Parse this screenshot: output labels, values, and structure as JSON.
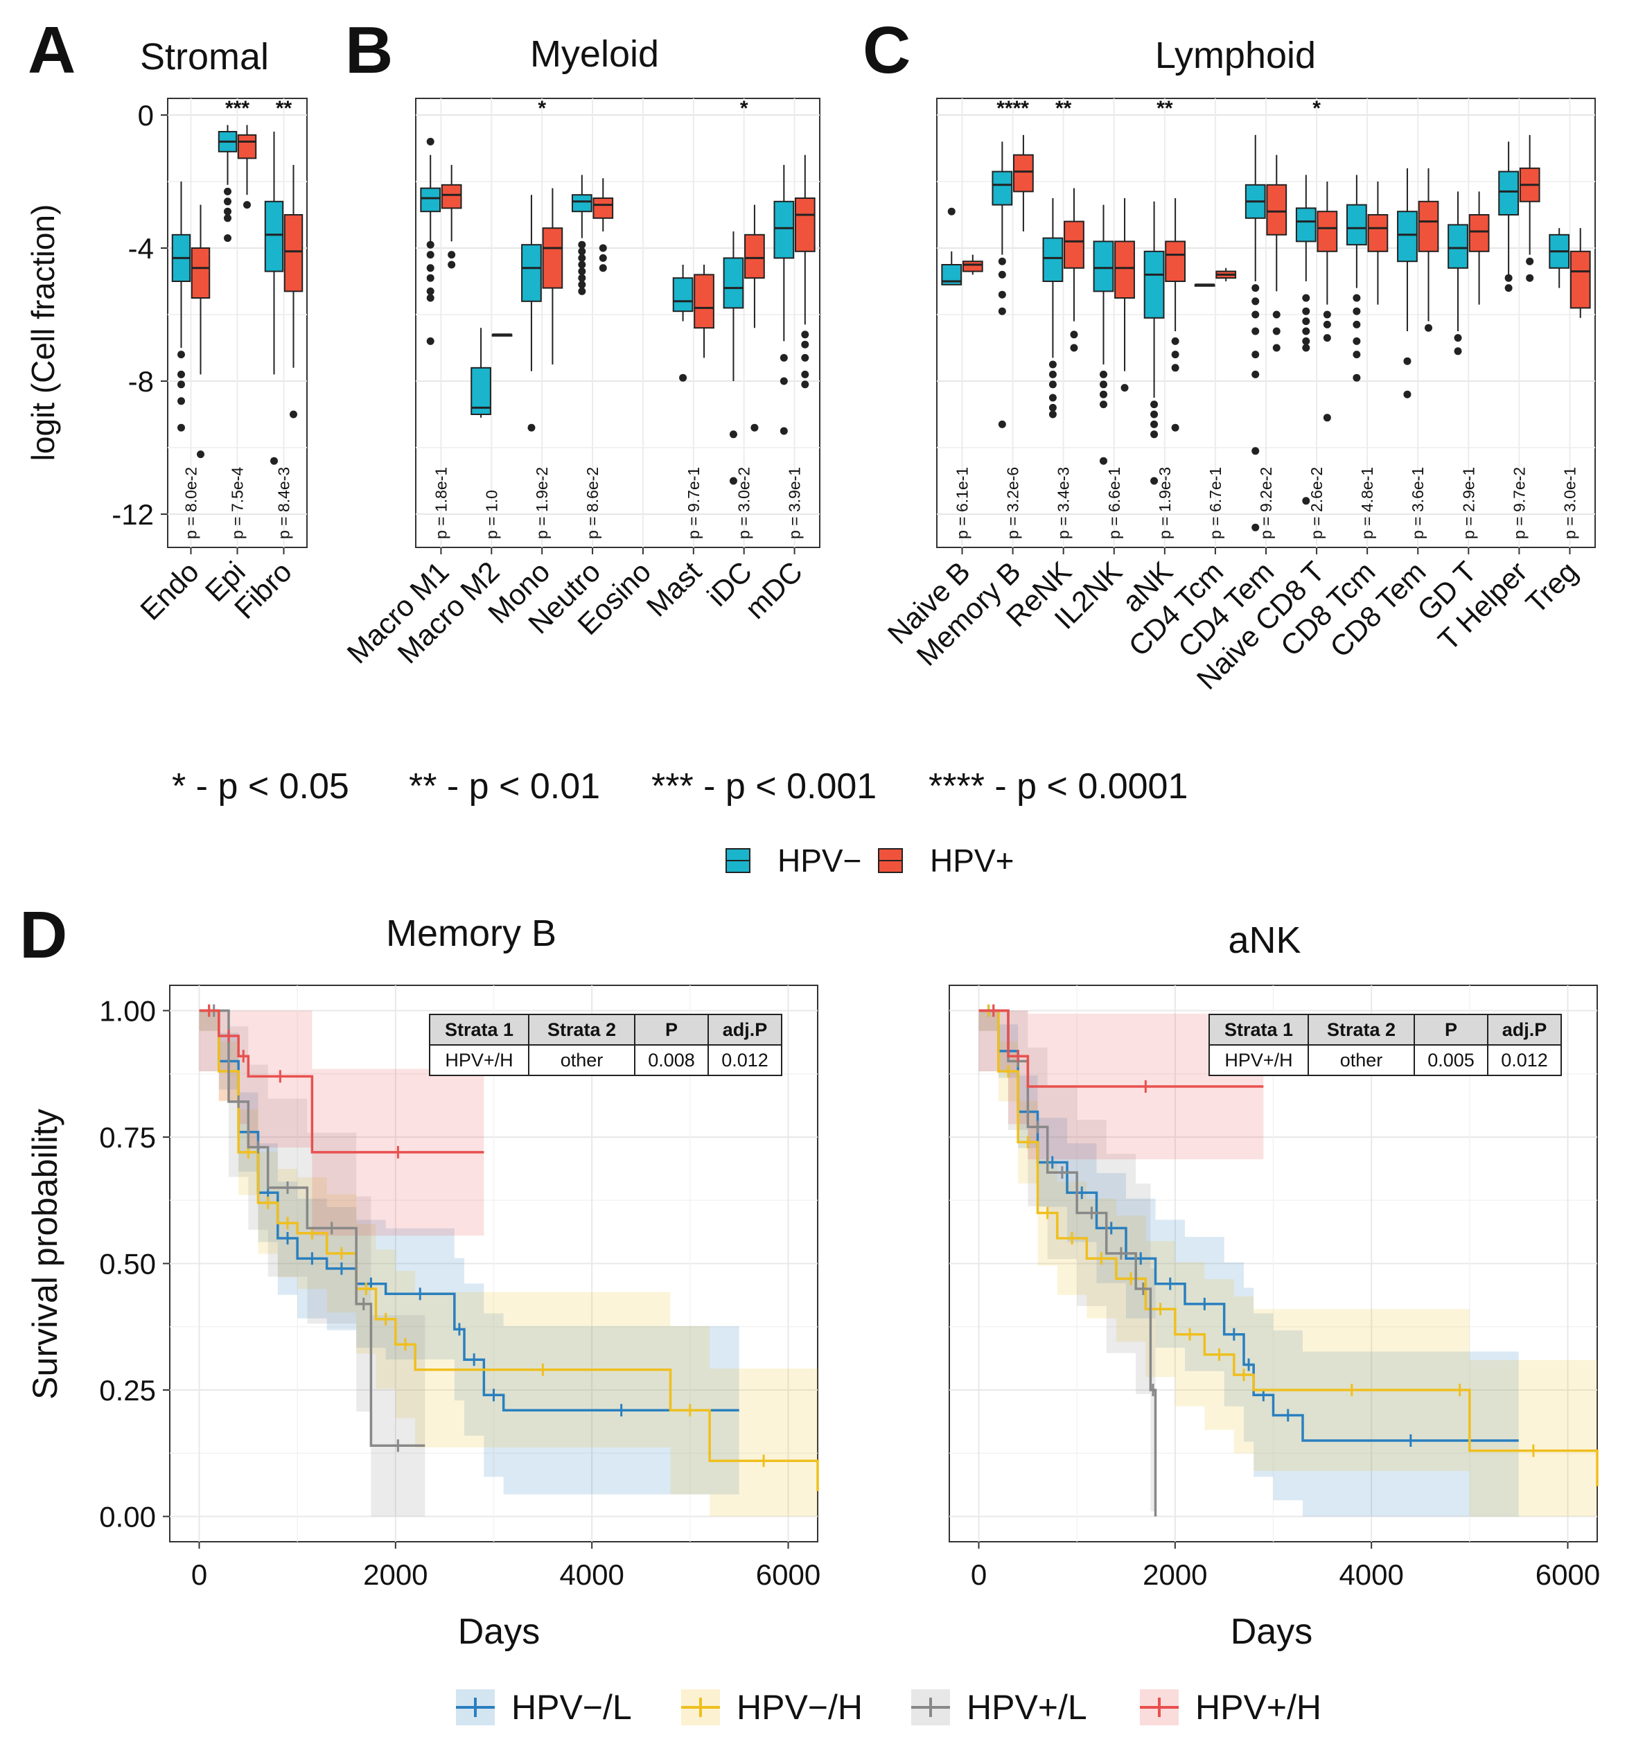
{
  "chart_data": [
    {
      "panel": "A",
      "type": "box",
      "title": "Stromal",
      "ylabel": "logit (Cell fraction)",
      "ylim": [
        -13,
        0.5
      ],
      "yticks": [
        0,
        -4,
        -8,
        -12
      ],
      "categories": [
        "Endo",
        "Epi",
        "Fibro"
      ],
      "stars": [
        "",
        "***",
        "**"
      ],
      "pvalues": [
        "p = 8.0e-2",
        "p = 7.5e-4",
        "p = 8.4e-3"
      ],
      "boxes": [
        {
          "cat": 0,
          "group": "HPV-",
          "min": -7.0,
          "q1": -5.0,
          "med": -4.3,
          "q3": -3.6,
          "max": -2.0,
          "outliers": [
            -7.2,
            -7.8,
            -8.1,
            -8.6,
            -9.4
          ]
        },
        {
          "cat": 0,
          "group": "HPV+",
          "min": -7.8,
          "q1": -5.5,
          "med": -4.6,
          "q3": -4.0,
          "max": -2.7,
          "outliers": [
            -10.2
          ]
        },
        {
          "cat": 1,
          "group": "HPV-",
          "min": -2.1,
          "q1": -1.1,
          "med": -0.8,
          "q3": -0.5,
          "max": -0.3,
          "outliers": [
            -2.3,
            -2.6,
            -2.9,
            -3.1,
            -3.7
          ]
        },
        {
          "cat": 1,
          "group": "HPV+",
          "min": -2.4,
          "q1": -1.3,
          "med": -0.8,
          "q3": -0.6,
          "max": -0.3,
          "outliers": [
            -2.7
          ]
        },
        {
          "cat": 2,
          "group": "HPV-",
          "min": -7.8,
          "q1": -4.7,
          "med": -3.6,
          "q3": -2.6,
          "max": -0.5,
          "outliers": [
            -10.4
          ]
        },
        {
          "cat": 2,
          "group": "HPV+",
          "min": -7.6,
          "q1": -5.3,
          "med": -4.1,
          "q3": -3.0,
          "max": -1.5,
          "outliers": [
            -9.0
          ]
        }
      ]
    },
    {
      "panel": "B",
      "type": "box",
      "title": "Myeloid",
      "ylim": [
        -13,
        0.5
      ],
      "categories": [
        "Macro M1",
        "Macro M2",
        "Mono",
        "Neutro",
        "Eosino",
        "Mast",
        "iDC",
        "mDC"
      ],
      "stars": [
        "",
        "",
        "*",
        "",
        "",
        "",
        "*",
        ""
      ],
      "pvalues": [
        "p = 1.8e-1",
        "p = 1.0",
        "p = 1.9e-2",
        "p = 8.6e-2",
        "",
        "p = 9.7e-1",
        "p = 3.0e-2",
        "p = 3.9e-1"
      ],
      "boxes": [
        {
          "cat": 0,
          "group": "HPV-",
          "min": -3.8,
          "q1": -2.9,
          "med": -2.5,
          "q3": -2.2,
          "max": -1.2,
          "outliers": [
            -0.8,
            -3.9,
            -4.2,
            -4.6,
            -4.9,
            -5.3,
            -5.5,
            -6.8
          ]
        },
        {
          "cat": 0,
          "group": "HPV+",
          "min": -3.8,
          "q1": -2.8,
          "med": -2.4,
          "q3": -2.1,
          "max": -1.5,
          "outliers": [
            -4.2,
            -4.5
          ]
        },
        {
          "cat": 1,
          "group": "HPV-",
          "min": -9.1,
          "q1": -9.0,
          "med": -8.8,
          "q3": -7.6,
          "max": -6.4,
          "outliers": []
        },
        {
          "cat": 1,
          "group": "HPV+",
          "min": -6.6,
          "q1": -6.6,
          "med": -6.6,
          "q3": -6.6,
          "max": -6.6,
          "outliers": []
        },
        {
          "cat": 2,
          "group": "HPV-",
          "min": -7.7,
          "q1": -5.6,
          "med": -4.6,
          "q3": -3.9,
          "max": -2.4,
          "outliers": [
            -9.4
          ]
        },
        {
          "cat": 2,
          "group": "HPV+",
          "min": -7.5,
          "q1": -5.2,
          "med": -4.0,
          "q3": -3.4,
          "max": -2.2,
          "outliers": []
        },
        {
          "cat": 3,
          "group": "HPV-",
          "min": -3.7,
          "q1": -2.9,
          "med": -2.6,
          "q3": -2.4,
          "max": -1.8,
          "outliers": [
            -3.9,
            -4.1,
            -4.3,
            -4.5,
            -4.7,
            -4.9,
            -5.1,
            -5.3
          ]
        },
        {
          "cat": 3,
          "group": "HPV+",
          "min": -3.5,
          "q1": -3.1,
          "med": -2.7,
          "q3": -2.5,
          "max": -1.9,
          "outliers": [
            -4.0,
            -4.3,
            -4.6
          ]
        },
        {
          "cat": 5,
          "group": "HPV-",
          "min": -6.2,
          "q1": -5.9,
          "med": -5.6,
          "q3": -4.9,
          "max": -4.5,
          "outliers": [
            -7.9
          ]
        },
        {
          "cat": 5,
          "group": "HPV+",
          "min": -7.3,
          "q1": -6.4,
          "med": -5.8,
          "q3": -4.8,
          "max": -4.5,
          "outliers": []
        },
        {
          "cat": 6,
          "group": "HPV-",
          "min": -8.0,
          "q1": -5.8,
          "med": -5.2,
          "q3": -4.3,
          "max": -3.5,
          "outliers": [
            -9.6,
            -11.0
          ]
        },
        {
          "cat": 6,
          "group": "HPV+",
          "min": -6.4,
          "q1": -4.9,
          "med": -4.3,
          "q3": -3.6,
          "max": -2.7,
          "outliers": [
            -9.4
          ]
        },
        {
          "cat": 7,
          "group": "HPV-",
          "min": -6.8,
          "q1": -4.3,
          "med": -3.4,
          "q3": -2.6,
          "max": -1.5,
          "outliers": [
            -7.3,
            -8.0,
            -9.5
          ]
        },
        {
          "cat": 7,
          "group": "HPV+",
          "min": -6.3,
          "q1": -4.1,
          "med": -3.0,
          "q3": -2.5,
          "max": -1.2,
          "outliers": [
            -6.6,
            -6.9,
            -7.3,
            -7.8,
            -8.1
          ]
        }
      ]
    },
    {
      "panel": "C",
      "type": "box",
      "title": "Lymphoid",
      "ylim": [
        -13,
        0.5
      ],
      "categories": [
        "Naive B",
        "Memory B",
        "ReNK",
        "IL2NK",
        "aNK",
        "CD4 Tcm",
        "CD4 Tem",
        "Naive CD8 T",
        "CD8 Tcm",
        "CD8 Tem",
        "GD T",
        "T Helper",
        "Treg"
      ],
      "stars": [
        "",
        "****",
        "**",
        "",
        "**",
        "",
        "",
        "*",
        "",
        "",
        "",
        "",
        ""
      ],
      "pvalues": [
        "p = 6.1e-1",
        "p = 3.2e-6",
        "p = 3.4e-3",
        "p = 6.6e-1",
        "p = 1.9e-3",
        "p = 6.7e-1",
        "p = 9.2e-2",
        "p = 2.6e-2",
        "p = 4.8e-1",
        "p = 3.6e-1",
        "p = 2.9e-1",
        "p = 9.7e-2",
        "p = 3.0e-1"
      ],
      "boxes": [
        {
          "cat": 0,
          "group": "HPV-",
          "min": -5.1,
          "q1": -5.1,
          "med": -5.0,
          "q3": -4.5,
          "max": -4.1,
          "outliers": [
            -2.9
          ]
        },
        {
          "cat": 0,
          "group": "HPV+",
          "min": -4.8,
          "q1": -4.7,
          "med": -4.5,
          "q3": -4.4,
          "max": -4.2,
          "outliers": []
        },
        {
          "cat": 1,
          "group": "HPV-",
          "min": -4.2,
          "q1": -2.7,
          "med": -2.1,
          "q3": -1.7,
          "max": -0.8,
          "outliers": [
            -4.4,
            -4.8,
            -5.4,
            -5.9,
            -9.3
          ]
        },
        {
          "cat": 1,
          "group": "HPV+",
          "min": -3.5,
          "q1": -2.3,
          "med": -1.7,
          "q3": -1.2,
          "max": -0.6,
          "outliers": []
        },
        {
          "cat": 2,
          "group": "HPV-",
          "min": -7.3,
          "q1": -5.0,
          "med": -4.3,
          "q3": -3.7,
          "max": -2.5,
          "outliers": [
            -7.5,
            -7.8,
            -8.1,
            -8.5,
            -8.8,
            -9.0
          ]
        },
        {
          "cat": 2,
          "group": "HPV+",
          "min": -6.2,
          "q1": -4.6,
          "med": -3.8,
          "q3": -3.2,
          "max": -2.2,
          "outliers": [
            -6.6,
            -7.0
          ]
        },
        {
          "cat": 3,
          "group": "HPV-",
          "min": -7.5,
          "q1": -5.3,
          "med": -4.6,
          "q3": -3.8,
          "max": -2.7,
          "outliers": [
            -7.8,
            -8.1,
            -8.4,
            -8.7,
            -10.4
          ]
        },
        {
          "cat": 3,
          "group": "HPV+",
          "min": -7.7,
          "q1": -5.5,
          "med": -4.6,
          "q3": -3.8,
          "max": -2.5,
          "outliers": [
            -8.2
          ]
        },
        {
          "cat": 4,
          "group": "HPV-",
          "min": -8.5,
          "q1": -6.1,
          "med": -4.8,
          "q3": -4.1,
          "max": -2.6,
          "outliers": [
            -8.7,
            -9.0,
            -9.3,
            -9.6,
            -11.0
          ]
        },
        {
          "cat": 4,
          "group": "HPV+",
          "min": -6.5,
          "q1": -5.0,
          "med": -4.2,
          "q3": -3.8,
          "max": -2.5,
          "outliers": [
            -6.8,
            -7.2,
            -7.6,
            -9.4
          ]
        },
        {
          "cat": 5,
          "group": "HPV-",
          "min": -5.1,
          "q1": -5.1,
          "med": -5.1,
          "q3": -5.1,
          "max": -5.1,
          "outliers": []
        },
        {
          "cat": 5,
          "group": "HPV+",
          "min": -5.0,
          "q1": -4.9,
          "med": -4.8,
          "q3": -4.7,
          "max": -4.6,
          "outliers": []
        },
        {
          "cat": 6,
          "group": "HPV-",
          "min": -5.0,
          "q1": -3.1,
          "med": -2.6,
          "q3": -2.1,
          "max": -0.6,
          "outliers": [
            -5.2,
            -5.6,
            -6.0,
            -6.5,
            -7.2,
            -7.8,
            -10.1,
            -12.4
          ]
        },
        {
          "cat": 6,
          "group": "HPV+",
          "min": -5.3,
          "q1": -3.6,
          "med": -2.9,
          "q3": -2.1,
          "max": -1.2,
          "outliers": [
            -6.0,
            -6.5,
            -7.0
          ]
        },
        {
          "cat": 7,
          "group": "HPV-",
          "min": -5.0,
          "q1": -3.8,
          "med": -3.2,
          "q3": -2.8,
          "max": -1.8,
          "outliers": [
            -5.5,
            -5.9,
            -6.2,
            -6.5,
            -6.8,
            -7.0,
            -11.6
          ]
        },
        {
          "cat": 7,
          "group": "HPV+",
          "min": -5.7,
          "q1": -4.1,
          "med": -3.4,
          "q3": -2.9,
          "max": -2.0,
          "outliers": [
            -6.0,
            -6.3,
            -6.7,
            -9.1
          ]
        },
        {
          "cat": 8,
          "group": "HPV-",
          "min": -5.2,
          "q1": -3.9,
          "med": -3.4,
          "q3": -2.7,
          "max": -1.8,
          "outliers": [
            -5.5,
            -5.9,
            -6.3,
            -6.8,
            -7.2,
            -7.9
          ]
        },
        {
          "cat": 8,
          "group": "HPV+",
          "min": -5.7,
          "q1": -4.1,
          "med": -3.4,
          "q3": -3.0,
          "max": -2.0,
          "outliers": []
        },
        {
          "cat": 9,
          "group": "HPV-",
          "min": -6.5,
          "q1": -4.4,
          "med": -3.6,
          "q3": -2.9,
          "max": -1.6,
          "outliers": [
            -7.4,
            -8.4
          ]
        },
        {
          "cat": 9,
          "group": "HPV+",
          "min": -6.2,
          "q1": -4.1,
          "med": -3.2,
          "q3": -2.6,
          "max": -1.6,
          "outliers": [
            -6.4
          ]
        },
        {
          "cat": 10,
          "group": "HPV-",
          "min": -6.5,
          "q1": -4.6,
          "med": -4.0,
          "q3": -3.3,
          "max": -2.3,
          "outliers": [
            -6.7,
            -7.1
          ]
        },
        {
          "cat": 10,
          "group": "HPV+",
          "min": -5.7,
          "q1": -4.1,
          "med": -3.5,
          "q3": -3.0,
          "max": -2.3,
          "outliers": []
        },
        {
          "cat": 11,
          "group": "HPV-",
          "min": -4.8,
          "q1": -3.0,
          "med": -2.3,
          "q3": -1.7,
          "max": -0.8,
          "outliers": [
            -4.9,
            -5.2
          ]
        },
        {
          "cat": 11,
          "group": "HPV+",
          "min": -4.2,
          "q1": -2.6,
          "med": -2.1,
          "q3": -1.6,
          "max": -0.6,
          "outliers": [
            -4.4,
            -4.9
          ]
        },
        {
          "cat": 12,
          "group": "HPV-",
          "min": -5.2,
          "q1": -4.6,
          "med": -4.1,
          "q3": -3.6,
          "max": -3.4,
          "outliers": []
        },
        {
          "cat": 12,
          "group": "HPV+",
          "min": -6.1,
          "q1": -5.8,
          "med": -4.7,
          "q3": -4.1,
          "max": -3.4,
          "outliers": []
        }
      ]
    },
    {
      "panel": "D",
      "type": "line",
      "title": "Memory B",
      "xlabel": "Days",
      "ylabel": "Survival probability",
      "xlim": [
        -300,
        6300
      ],
      "ylim": [
        0,
        1.05
      ],
      "xticks": [
        0,
        2000,
        4000,
        6000
      ],
      "yticks": [
        "1.00",
        "0.75",
        "0.50",
        "0.25",
        "0.00"
      ],
      "table": {
        "headers": [
          "Strata 1",
          "Strata 2",
          "P",
          "adj.P"
        ],
        "row": [
          "HPV+/H",
          "other",
          "0.008",
          "0.012"
        ]
      },
      "series": [
        {
          "name": "HPV-/L",
          "x": [
            0,
            200,
            400,
            600,
            800,
            1000,
            1300,
            1600,
            1900,
            2600,
            2700,
            2900,
            3100,
            5500
          ],
          "y": [
            1.0,
            0.9,
            0.76,
            0.64,
            0.55,
            0.51,
            0.49,
            0.46,
            0.44,
            0.37,
            0.31,
            0.24,
            0.21,
            0.21
          ]
        },
        {
          "name": "HPV-/H",
          "x": [
            0,
            200,
            400,
            600,
            800,
            1000,
            1300,
            1600,
            1800,
            2000,
            2200,
            4800,
            5200,
            6300
          ],
          "y": [
            1.0,
            0.88,
            0.72,
            0.62,
            0.58,
            0.56,
            0.52,
            0.45,
            0.39,
            0.34,
            0.29,
            0.21,
            0.11,
            0.05
          ]
        },
        {
          "name": "HPV+/L",
          "x": [
            0,
            300,
            500,
            700,
            1100,
            1600,
            1750,
            2300
          ],
          "y": [
            1.0,
            0.82,
            0.73,
            0.65,
            0.57,
            0.42,
            0.14,
            0.14
          ]
        },
        {
          "name": "HPV+/H",
          "x": [
            0,
            200,
            400,
            500,
            1150,
            2900
          ],
          "y": [
            1.0,
            0.95,
            0.91,
            0.87,
            0.72,
            0.72
          ]
        }
      ]
    },
    {
      "panel": "D",
      "type": "line",
      "title": "aNK",
      "xlabel": "Days",
      "xlim": [
        -300,
        6300
      ],
      "ylim": [
        0,
        1.05
      ],
      "xticks": [
        0,
        2000,
        4000,
        6000
      ],
      "table": {
        "headers": [
          "Strata 1",
          "Strata 2",
          "P",
          "adj.P"
        ],
        "row": [
          "HPV+/H",
          "other",
          "0.005",
          "0.012"
        ]
      },
      "series": [
        {
          "name": "HPV-/L",
          "x": [
            0,
            200,
            400,
            600,
            900,
            1200,
            1500,
            1800,
            2100,
            2500,
            2700,
            2800,
            3000,
            3300,
            5500
          ],
          "y": [
            1.0,
            0.92,
            0.8,
            0.7,
            0.64,
            0.57,
            0.51,
            0.46,
            0.42,
            0.36,
            0.3,
            0.24,
            0.2,
            0.15,
            0.15
          ]
        },
        {
          "name": "HPV-/H",
          "x": [
            0,
            200,
            400,
            600,
            800,
            1100,
            1400,
            1700,
            2000,
            2300,
            2600,
            2800,
            4800,
            5000,
            6300
          ],
          "y": [
            1.0,
            0.88,
            0.74,
            0.6,
            0.55,
            0.51,
            0.47,
            0.41,
            0.36,
            0.32,
            0.28,
            0.25,
            0.25,
            0.13,
            0.06
          ]
        },
        {
          "name": "HPV+/L",
          "x": [
            0,
            300,
            500,
            700,
            1000,
            1300,
            1600,
            1750,
            1800
          ],
          "y": [
            1.0,
            0.9,
            0.77,
            0.68,
            0.6,
            0.52,
            0.45,
            0.25,
            0.0
          ]
        },
        {
          "name": "HPV+/H",
          "x": [
            0,
            300,
            500,
            2900
          ],
          "y": [
            1.0,
            0.91,
            0.85,
            0.85
          ]
        }
      ]
    }
  ],
  "sig_legend": {
    "s1": "* - p < 0.05",
    "s2": "** - p < 0.01",
    "s3": "*** - p < 0.001",
    "s4": "**** - p < 0.0001"
  },
  "box_legend": [
    {
      "label": "HPV−",
      "color": "#1ab4cc"
    },
    {
      "label": "HPV+",
      "color": "#f0533b"
    }
  ],
  "km_legend": [
    {
      "label": "HPV−/L",
      "color": "#2a7fbf"
    },
    {
      "label": "HPV−/H",
      "color": "#efbf1f"
    },
    {
      "label": "HPV+/L",
      "color": "#888888"
    },
    {
      "label": "HPV+/H",
      "color": "#e8504e"
    }
  ],
  "panel_letters": [
    "A",
    "B",
    "C",
    "D"
  ]
}
